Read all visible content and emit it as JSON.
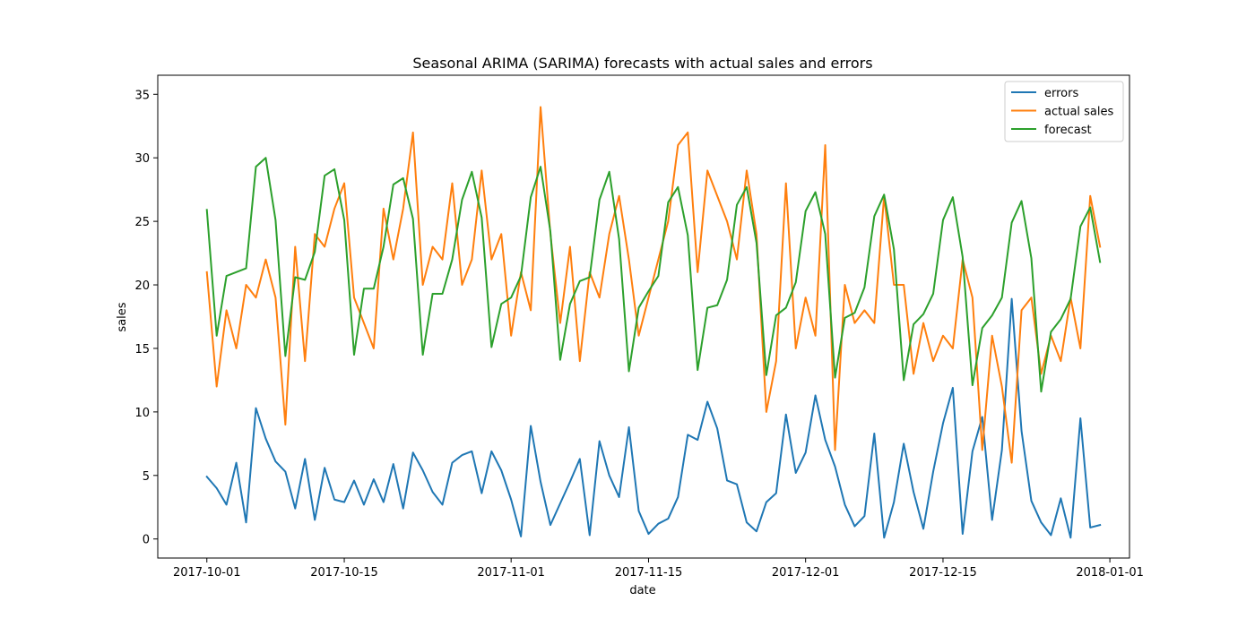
{
  "chart_data": {
    "type": "line",
    "title": "Seasonal ARIMA (SARIMA) forecasts with actual sales and errors",
    "xlabel": "date",
    "ylabel": "sales",
    "start_date": "2017-10-01",
    "xlim": [
      "2017-09-26",
      "2018-01-03"
    ],
    "ylim": [
      -1.5,
      36.5
    ],
    "x_ticks": [
      "2017-10-01",
      "2017-10-15",
      "2017-11-01",
      "2017-11-15",
      "2017-12-01",
      "2017-12-15",
      "2018-01-01"
    ],
    "y_ticks": [
      0,
      5,
      10,
      15,
      20,
      25,
      30,
      35
    ],
    "grid": false,
    "legend": "top-right",
    "series": [
      {
        "name": "errors",
        "color": "#1f77b4",
        "values": [
          4.9,
          4.0,
          2.7,
          6.0,
          1.3,
          10.3,
          7.9,
          6.1,
          5.3,
          2.4,
          6.3,
          1.5,
          5.6,
          3.1,
          2.9,
          4.6,
          2.7,
          4.7,
          2.9,
          5.9,
          2.4,
          6.8,
          5.4,
          3.7,
          2.7,
          6.0,
          6.6,
          6.9,
          3.6,
          6.9,
          5.4,
          3.1,
          0.2,
          8.9,
          4.5,
          1.1,
          2.8,
          4.5,
          6.3,
          0.3,
          7.7,
          5.0,
          3.3,
          8.8,
          2.2,
          0.4,
          1.2,
          1.6,
          3.3,
          8.2,
          7.8,
          10.8,
          8.7,
          4.6,
          4.3,
          1.3,
          0.6,
          2.9,
          3.6,
          9.8,
          5.2,
          6.8,
          11.3,
          7.8,
          5.7,
          2.7,
          1.0,
          1.8,
          8.3,
          0.1,
          2.9,
          7.5,
          3.7,
          0.8,
          5.3,
          9.1,
          11.9,
          0.4,
          6.9,
          9.6,
          1.5,
          7.0,
          18.9,
          8.5,
          3.0,
          1.3,
          0.3,
          3.2,
          0.1,
          9.5,
          0.9,
          1.1
        ]
      },
      {
        "name": "actual sales",
        "color": "#ff7f0e",
        "values": [
          21,
          12,
          18,
          15,
          20,
          19,
          22,
          19,
          9,
          23,
          14,
          24,
          23,
          26,
          28,
          19,
          17,
          15,
          26,
          22,
          26,
          32,
          20,
          23,
          22,
          28,
          20,
          22,
          29,
          22,
          24,
          16,
          21,
          18,
          34,
          24,
          17,
          23,
          14,
          21,
          19,
          24,
          27,
          22,
          16,
          19,
          22,
          25,
          31,
          32,
          21,
          29,
          27,
          25,
          22,
          29,
          24,
          10,
          14,
          28,
          15,
          19,
          16,
          31,
          7,
          20,
          17,
          18,
          17,
          27,
          20,
          20,
          13,
          17,
          14,
          16,
          15,
          22,
          19,
          7,
          16,
          12,
          6,
          18,
          19,
          13,
          16,
          14,
          19,
          15,
          27,
          23
        ]
      },
      {
        "name": "forecast",
        "color": "#2ca02c",
        "values": [
          25.9,
          16.0,
          20.7,
          21.0,
          21.3,
          29.3,
          30.0,
          25.1,
          14.4,
          20.6,
          20.4,
          22.6,
          28.6,
          29.1,
          25.1,
          14.5,
          19.7,
          19.7,
          23.0,
          27.9,
          28.4,
          25.2,
          14.5,
          19.3,
          19.3,
          22.0,
          26.7,
          28.9,
          25.3,
          15.1,
          18.5,
          19.0,
          20.7,
          26.9,
          29.3,
          24.2,
          14.1,
          18.5,
          20.3,
          20.6,
          26.7,
          28.9,
          23.6,
          13.2,
          18.2,
          19.5,
          20.7,
          26.5,
          27.7,
          23.9,
          13.3,
          18.2,
          18.4,
          20.4,
          26.3,
          27.7,
          23.3,
          12.9,
          17.6,
          18.2,
          20.2,
          25.8,
          27.3,
          24.0,
          12.7,
          17.4,
          17.8,
          19.8,
          25.4,
          27.1,
          22.8,
          12.5,
          16.9,
          17.7,
          19.3,
          25.1,
          26.9,
          22.2,
          12.1,
          16.6,
          17.6,
          19.0,
          24.9,
          26.6,
          22.1,
          11.6,
          16.3,
          17.3,
          18.9,
          24.6,
          26.1,
          21.8
        ]
      }
    ]
  }
}
